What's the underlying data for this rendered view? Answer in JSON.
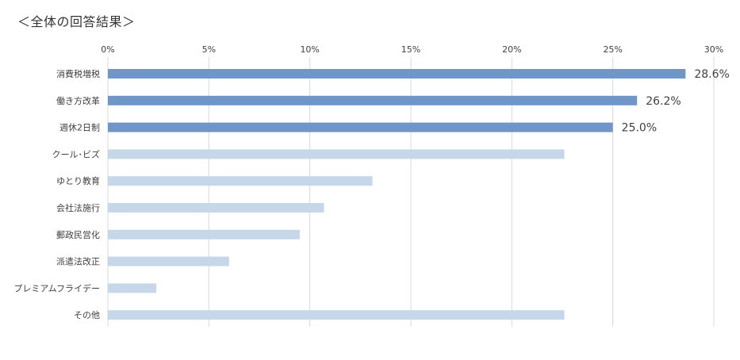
{
  "chart_data": {
    "type": "bar",
    "orientation": "horizontal",
    "title": "＜全体の回答結果＞",
    "categories": [
      "消費税増税",
      "働き方改革",
      "週休2日制",
      "クール･ビズ",
      "ゆとり教育",
      "会社法施行",
      "郵政民営化",
      "派遣法改正",
      "プレミアムフライデー",
      "その他"
    ],
    "values": [
      28.6,
      26.2,
      25.0,
      22.6,
      13.1,
      10.7,
      9.5,
      6.0,
      2.4,
      22.6
    ],
    "highlighted": [
      true,
      true,
      true,
      false,
      false,
      false,
      false,
      false,
      false,
      false
    ],
    "data_labels": [
      "28.6%",
      "26.2%",
      "25.0%",
      "",
      "",
      "",
      "",
      "",
      "",
      ""
    ],
    "xlim": [
      0,
      30
    ],
    "xticks": [
      "0%",
      "5%",
      "10%",
      "15%",
      "20%",
      "25%",
      "30%"
    ],
    "xtick_values": [
      0,
      5,
      10,
      15,
      20,
      25,
      30
    ],
    "grid": "vertical",
    "colors": {
      "highlight": "#6F96C6",
      "normal": "#C6D7EA",
      "gridline": "#D9D9D9",
      "text": "#404040"
    }
  }
}
